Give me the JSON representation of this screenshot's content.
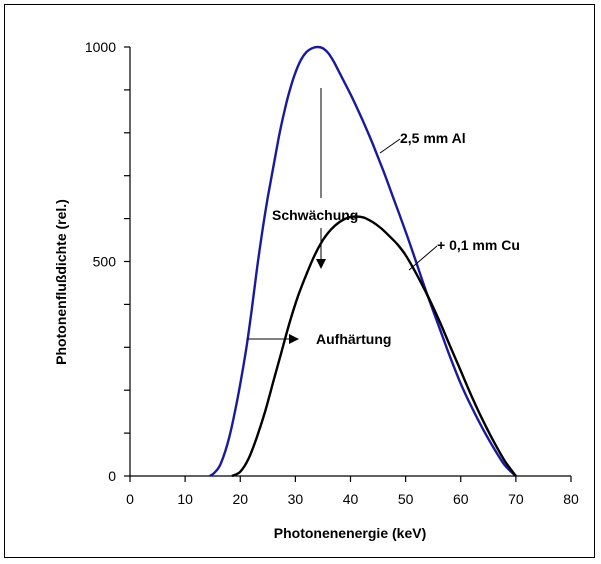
{
  "chart_data": {
    "type": "line",
    "title": "",
    "xlabel": "Photonenenergie (keV)",
    "ylabel": "Photonenflußdichte (rel.)",
    "xlim": [
      0,
      80
    ],
    "ylim": [
      0,
      1000
    ],
    "x_ticks": [
      0,
      10,
      20,
      30,
      40,
      50,
      60,
      70,
      80
    ],
    "y_ticks_labeled": [
      0,
      500,
      1000
    ],
    "y_minor_step": 100,
    "grid": false,
    "series": [
      {
        "name": "2,5 mm Al",
        "color": "#1a1a9c",
        "x": [
          14.5,
          15.5,
          16.5,
          18,
          19.5,
          21,
          22,
          23,
          24,
          25,
          26,
          27,
          28,
          29,
          30,
          31,
          32,
          33,
          34,
          35,
          36,
          37,
          38,
          40,
          42,
          44,
          46,
          48,
          50,
          52,
          54,
          56,
          58,
          60,
          62,
          64,
          66,
          68,
          70
        ],
        "values": [
          0,
          10,
          30,
          90,
          180,
          290,
          380,
          480,
          570,
          650,
          720,
          790,
          850,
          900,
          940,
          970,
          988,
          997,
          1000,
          997,
          985,
          965,
          940,
          890,
          835,
          775,
          710,
          640,
          570,
          495,
          420,
          350,
          280,
          215,
          160,
          110,
          65,
          25,
          0
        ]
      },
      {
        "name": "+ 0,1 mm Cu",
        "color": "#000000",
        "x": [
          18.5,
          20,
          21.5,
          23,
          24.5,
          26,
          27.5,
          29,
          30.5,
          32,
          33.5,
          35,
          36.5,
          38,
          39.5,
          41,
          42.5,
          44,
          45.5,
          47,
          48.5,
          50,
          52,
          54,
          56,
          58,
          60,
          62,
          64,
          66,
          68,
          70
        ],
        "values": [
          0,
          10,
          40,
          90,
          150,
          220,
          290,
          360,
          420,
          470,
          515,
          550,
          575,
          592,
          602,
          605,
          602,
          592,
          578,
          560,
          540,
          515,
          470,
          420,
          365,
          305,
          245,
          185,
          130,
          80,
          35,
          0
        ]
      }
    ],
    "annotations": [
      {
        "text": "Schwächung"
      },
      {
        "text": "Aufhärtung"
      }
    ]
  }
}
